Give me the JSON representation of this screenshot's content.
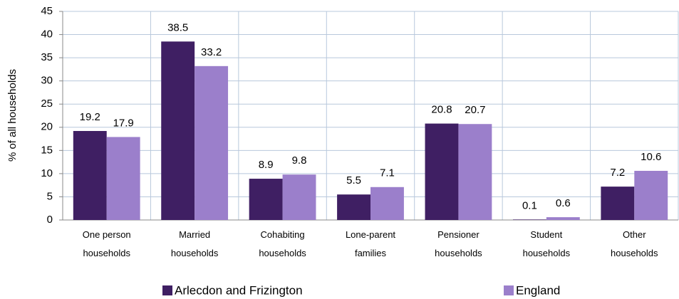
{
  "chart_data": {
    "type": "bar",
    "y_axis_label": "% of all households",
    "categories": [
      "One person households",
      "Married households",
      "Cohabiting households",
      "Lone-parent families",
      "Pensioner households",
      "Student households",
      "Other households"
    ],
    "series": [
      {
        "name": "Arlecdon and Frizington",
        "color": "#3f1f63",
        "values": [
          19.2,
          38.5,
          8.9,
          5.5,
          20.8,
          0.1,
          7.2
        ]
      },
      {
        "name": "England",
        "color": "#9b7fcb",
        "values": [
          17.9,
          33.2,
          9.8,
          7.1,
          20.7,
          0.6,
          10.6
        ]
      }
    ],
    "ylim": [
      0,
      45
    ],
    "yticks": [
      0,
      5,
      10,
      15,
      20,
      25,
      30,
      35,
      40,
      45
    ],
    "grid": true,
    "legend": "bottom"
  }
}
